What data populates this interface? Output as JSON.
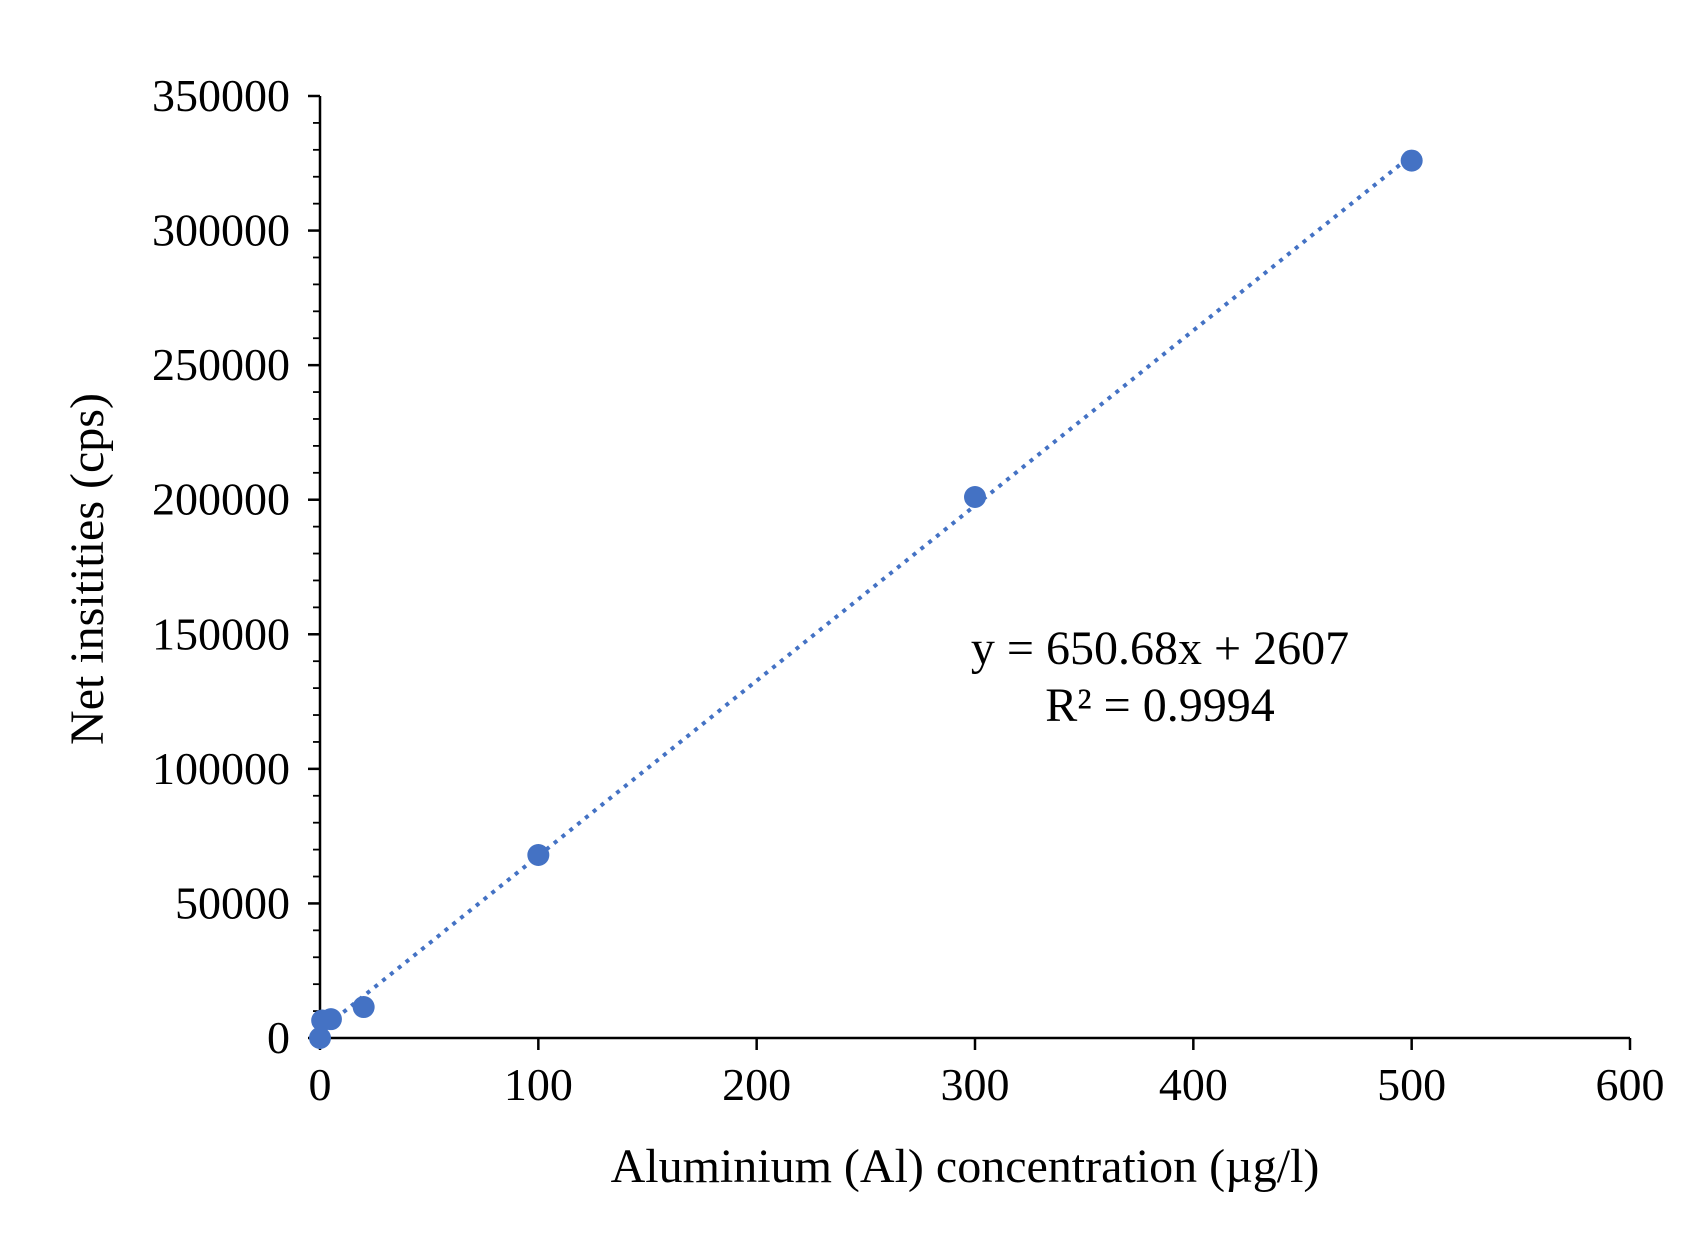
{
  "chart_data": {
    "type": "scatter",
    "title": "",
    "xlabel": "Aluminium (Al) concentration (µg/l)",
    "ylabel": "Net insitities (cps)",
    "xlim": [
      0,
      600
    ],
    "ylim": [
      0,
      350000
    ],
    "x_ticks": [
      "0",
      "100",
      "200",
      "300",
      "400",
      "500",
      "600"
    ],
    "y_ticks": [
      "0",
      "50000",
      "100000",
      "150000",
      "200000",
      "250000",
      "300000",
      "350000"
    ],
    "grid": false,
    "legend": "none",
    "marker_color": "#4472C4",
    "trendline_color": "#4472C4",
    "series": [
      {
        "points": [
          {
            "x": 0,
            "y": 0
          },
          {
            "x": 1,
            "y": 6500
          },
          {
            "x": 5,
            "y": 7000
          },
          {
            "x": 20,
            "y": 11500
          },
          {
            "x": 100,
            "y": 68000
          },
          {
            "x": 300,
            "y": 201000
          },
          {
            "x": 500,
            "y": 326000
          }
        ]
      }
    ],
    "trendline": {
      "type": "linear",
      "slope": 650.68,
      "intercept": 2607,
      "x_range": [
        0,
        500
      ],
      "equation_label": "y = 650.68x + 2607",
      "r2_label": "R² = 0.9994"
    }
  }
}
